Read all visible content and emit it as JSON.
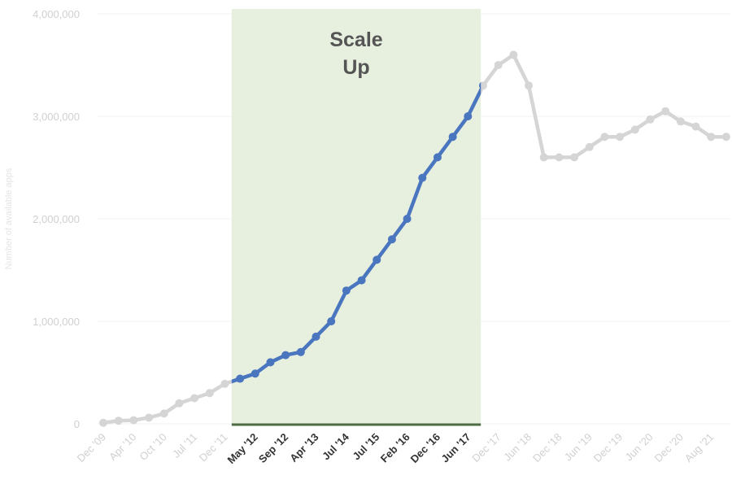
{
  "chart_data": {
    "type": "line",
    "y_label": "Number of available apps",
    "categories": [
      "Dec '09",
      null,
      "Apr '10",
      null,
      "Oct '10",
      null,
      "Jul '11",
      null,
      "Dec '11",
      null,
      "May '12",
      null,
      "Sep '12",
      null,
      "Apr '13",
      null,
      "Jul '14",
      null,
      "Jul '15",
      null,
      "Feb '16",
      null,
      "Dec '16",
      null,
      "Jun '17",
      null,
      "Dec '17",
      null,
      "Jun '18",
      null,
      "Dec '18",
      null,
      "Jun '19",
      null,
      "Dec '19",
      null,
      "Jun '20",
      null,
      "Dec '20",
      null,
      "Aug '21",
      null
    ],
    "series": [
      {
        "color": "#d5d5d5",
        "values": [
          10000,
          30000,
          35000,
          60000,
          100000,
          200000,
          250000,
          300000,
          390000,
          440000,
          490000,
          600000,
          670000,
          700000,
          850000,
          1000000,
          1300000,
          1400000,
          1600000,
          1800000,
          2000000,
          2400000,
          2600000,
          2800000,
          3000000,
          3300000,
          3500000,
          3600000,
          3300000,
          2600000,
          2600000,
          2600000,
          2700000,
          2800000,
          2800000,
          2870000,
          2970000,
          3050000,
          2950000,
          2900000,
          2800000,
          2800000
        ]
      }
    ],
    "highlight": {
      "text": [
        "Scale",
        "Up"
      ],
      "from": "Dec '11",
      "to": "Jun '17",
      "color": "#4a76c0",
      "fill": "#e4eedb",
      "edge": "#4e6b45"
    },
    "ylim": [
      0,
      4000000
    ],
    "yticks": [
      {
        "value": 0,
        "label": "0"
      },
      {
        "value": 1000000,
        "label": "1,000,000"
      },
      {
        "value": 2000000,
        "label": "2,000,000"
      },
      {
        "value": 3000000,
        "label": "3,000,000"
      },
      {
        "value": 4000000,
        "label": "4,000,000"
      }
    ],
    "grid": true
  }
}
